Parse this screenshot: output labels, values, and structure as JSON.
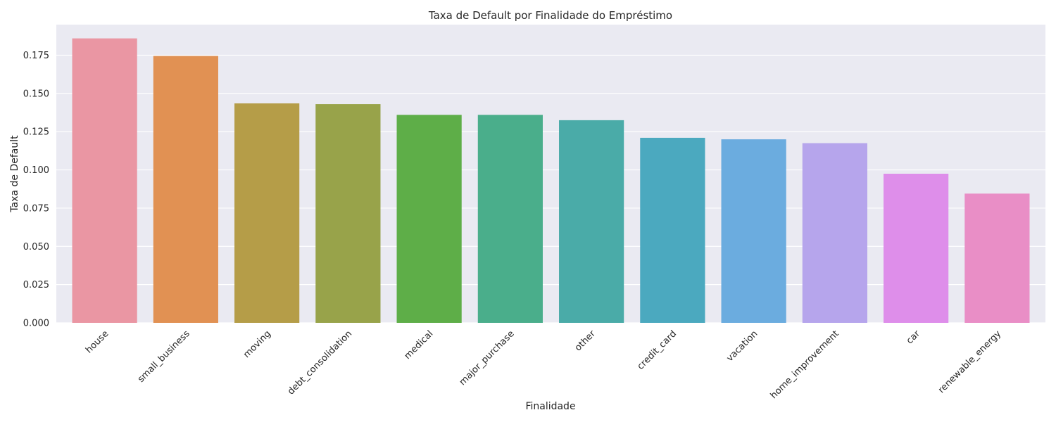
{
  "chart_data": {
    "type": "bar",
    "title": "Taxa de Default por Finalidade do Empréstimo",
    "xlabel": "Finalidade",
    "ylabel": "Taxa de Default",
    "categories": [
      "house",
      "small_business",
      "moving",
      "debt_consolidation",
      "medical",
      "major_purchase",
      "other",
      "credit_card",
      "vacation",
      "home_improvement",
      "car",
      "renewable_energy"
    ],
    "values": [
      0.186,
      0.1745,
      0.1435,
      0.143,
      0.136,
      0.136,
      0.1325,
      0.121,
      0.12,
      0.1175,
      0.0975,
      0.0845
    ],
    "colors": [
      "#ea96a3",
      "#e19153",
      "#b59d48",
      "#98a34a",
      "#5eae48",
      "#4aae8b",
      "#4aaba8",
      "#4ba9bf",
      "#6bacdf",
      "#b6a5ec",
      "#de8eea",
      "#e98ec6"
    ],
    "yticks": [
      "0.000",
      "0.025",
      "0.050",
      "0.075",
      "0.100",
      "0.125",
      "0.150",
      "0.175"
    ],
    "ylim": [
      0,
      0.195
    ],
    "grid": true,
    "background": "#eaeaf2"
  }
}
